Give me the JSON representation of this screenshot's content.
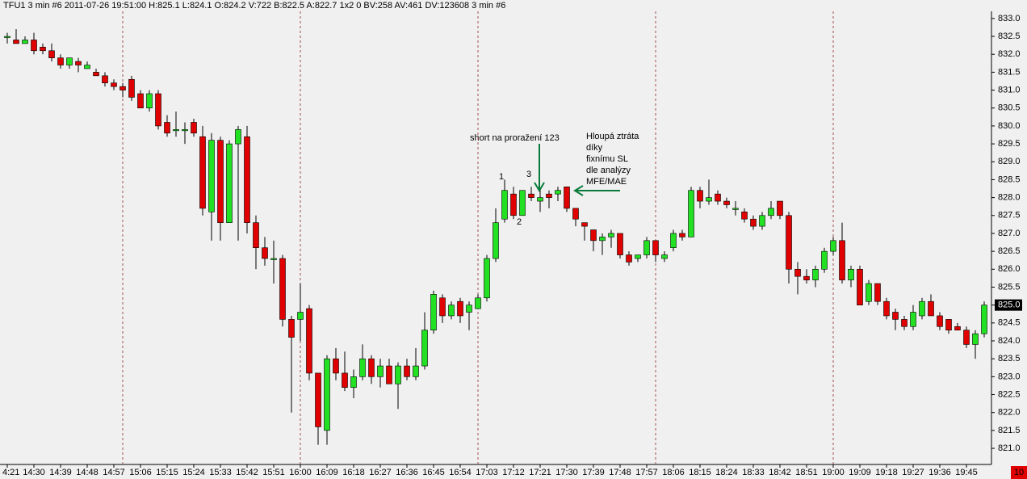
{
  "chart_data": {
    "type": "candlestick",
    "title": "TFU1  3 min  #6 2011-07-26 19:51:00 H:825.1 L:824.1 O:824.2 V:722 B:822.5 A:822.7 1x2 0 BV:258 AV:461 DV:123608 3 min  #6",
    "up_color": "#22e022",
    "down_color": "#e00000",
    "categories": [
      "4:21",
      null,
      null,
      "14:30",
      null,
      null,
      "14:39",
      null,
      null,
      "14:48",
      null,
      null,
      "14:57",
      null,
      null,
      "15:06",
      null,
      null,
      "15:15",
      null,
      null,
      "15:24",
      null,
      null,
      "15:33",
      null,
      null,
      "15:42",
      null,
      null,
      "15:51",
      null,
      null,
      "16:00",
      null,
      null,
      "16:09",
      null,
      null,
      "16:18",
      null,
      null,
      "16:27",
      null,
      null,
      "16:36",
      null,
      null,
      "16:45",
      null,
      null,
      "16:54",
      null,
      null,
      "17:03",
      null,
      null,
      "17:12",
      null,
      null,
      "17:21",
      null,
      null,
      "17:30",
      null,
      null,
      "17:39",
      null,
      null,
      "17:48",
      null,
      null,
      "17:57",
      null,
      null,
      "18:06",
      null,
      null,
      "18:15",
      null,
      null,
      "18:24",
      null,
      null,
      "18:33",
      null,
      null,
      "18:42",
      null,
      null,
      "18:51",
      null,
      null,
      "19:00",
      null,
      null,
      "19:09",
      null,
      null,
      "19:18",
      null,
      null,
      "19:27",
      null,
      null,
      "19:36",
      null,
      null,
      "19:45",
      null,
      null
    ],
    "open": [
      832.5,
      832.4,
      832.3,
      832.4,
      832.2,
      832.1,
      831.9,
      831.7,
      831.8,
      831.6,
      831.5,
      831.4,
      831.2,
      831.1,
      831.3,
      830.9,
      830.5,
      830.9,
      830.1,
      829.9,
      829.9,
      830.1,
      829.7,
      827.6,
      829.6,
      827.3,
      829.5,
      829.7,
      827.3,
      826.6,
      826.3,
      826.3,
      824.6,
      824.6,
      824.9,
      823.1,
      821.5,
      823.5,
      823.1,
      822.7,
      823.0,
      823.5,
      823.0,
      823.3,
      822.8,
      823.3,
      823.0,
      823.3,
      824.3,
      825.2,
      824.7,
      825.1,
      824.8,
      824.9,
      825.2,
      826.3,
      827.4,
      828.1,
      827.5,
      828.1,
      827.9,
      828.1,
      828.1,
      828.3,
      827.7,
      827.3,
      827.1,
      826.8,
      826.9,
      827.0,
      826.4,
      826.3,
      826.4,
      826.8,
      826.3,
      826.6,
      827.0,
      826.9,
      828.2,
      827.9,
      828.1,
      827.9,
      827.7,
      827.6,
      827.4,
      827.2,
      827.5,
      827.9,
      827.5,
      826.0,
      825.8,
      825.7,
      826.0,
      826.5,
      826.8,
      825.7,
      826.0,
      825.1,
      825.6,
      825.1,
      824.8,
      824.6,
      824.4,
      824.7,
      825.1,
      824.7,
      824.6,
      824.4,
      824.3,
      823.9,
      824.2
    ],
    "high": [
      832.6,
      832.7,
      832.5,
      832.6,
      832.3,
      832.3,
      832.0,
      831.9,
      831.9,
      831.8,
      831.6,
      831.5,
      831.3,
      831.2,
      831.4,
      831.0,
      831.0,
      831.0,
      830.3,
      830.4,
      830.1,
      830.2,
      830.0,
      829.8,
      829.7,
      829.6,
      830.0,
      830.0,
      827.5,
      826.9,
      826.8,
      826.4,
      824.7,
      825.6,
      825.0,
      823.1,
      823.6,
      823.8,
      823.7,
      823.2,
      823.9,
      823.6,
      823.5,
      823.5,
      823.4,
      823.5,
      823.8,
      824.8,
      825.4,
      825.3,
      825.1,
      825.2,
      825.1,
      825.3,
      826.4,
      827.7,
      828.5,
      828.3,
      828.2,
      828.3,
      828.2,
      828.2,
      828.3,
      828.3,
      827.7,
      827.3,
      827.1,
      827.0,
      827.1,
      827.0,
      826.5,
      826.4,
      826.9,
      826.8,
      826.5,
      827.1,
      827.1,
      828.3,
      828.3,
      828.5,
      828.2,
      828.0,
      827.9,
      827.7,
      827.5,
      827.6,
      827.9,
      827.9,
      827.6,
      826.2,
      826.0,
      826.1,
      826.6,
      826.9,
      827.3,
      826.1,
      826.1,
      825.7,
      825.6,
      825.2,
      824.9,
      824.7,
      825.0,
      825.2,
      825.3,
      824.8,
      824.6,
      824.5,
      824.4,
      824.3,
      825.1
    ],
    "low": [
      832.3,
      832.3,
      832.3,
      832.0,
      832.0,
      831.8,
      831.6,
      831.6,
      831.5,
      831.6,
      831.4,
      831.1,
      831.0,
      830.8,
      830.7,
      830.5,
      830.4,
      829.9,
      829.7,
      829.7,
      829.5,
      829.7,
      827.5,
      826.8,
      826.8,
      827.3,
      826.8,
      827.0,
      826.0,
      826.1,
      825.6,
      824.4,
      822.0,
      824.0,
      822.9,
      821.1,
      821.1,
      822.9,
      822.6,
      822.4,
      822.9,
      822.8,
      822.7,
      822.8,
      822.1,
      822.9,
      822.9,
      823.2,
      824.2,
      824.5,
      824.6,
      824.5,
      824.3,
      824.9,
      825.1,
      826.2,
      827.3,
      827.4,
      827.5,
      827.9,
      827.6,
      827.7,
      827.9,
      827.6,
      827.2,
      826.8,
      826.5,
      826.4,
      826.6,
      826.3,
      826.1,
      826.2,
      826.3,
      826.2,
      826.2,
      826.5,
      826.8,
      826.9,
      827.7,
      827.8,
      827.8,
      827.7,
      827.5,
      827.3,
      827.1,
      827.1,
      827.4,
      827.4,
      825.6,
      825.3,
      825.6,
      825.5,
      825.9,
      826.4,
      825.6,
      825.5,
      825.0,
      825.0,
      825.0,
      824.6,
      824.3,
      824.3,
      824.3,
      824.6,
      824.7,
      824.3,
      824.2,
      824.3,
      823.8,
      823.5,
      824.1
    ],
    "close": [
      832.5,
      832.3,
      832.4,
      832.1,
      832.1,
      831.9,
      831.7,
      831.9,
      831.7,
      831.7,
      831.4,
      831.2,
      831.1,
      831.0,
      830.8,
      830.5,
      830.9,
      830.0,
      829.8,
      829.9,
      829.9,
      829.8,
      827.7,
      829.6,
      827.3,
      829.5,
      829.9,
      827.3,
      826.6,
      826.3,
      826.3,
      824.6,
      824.1,
      824.8,
      823.1,
      821.6,
      823.5,
      823.1,
      822.7,
      823.0,
      823.5,
      823.0,
      823.3,
      822.8,
      823.3,
      823.0,
      823.3,
      824.3,
      825.3,
      824.7,
      825.0,
      824.7,
      825.0,
      825.2,
      826.3,
      827.3,
      828.2,
      827.5,
      828.2,
      828.0,
      828.0,
      828.0,
      828.2,
      827.7,
      827.4,
      827.2,
      826.8,
      826.9,
      827.0,
      826.4,
      826.2,
      826.4,
      826.8,
      826.4,
      826.4,
      827.0,
      826.9,
      828.2,
      827.9,
      828.0,
      827.9,
      827.8,
      827.7,
      827.4,
      827.2,
      827.5,
      827.7,
      827.5,
      826.0,
      825.8,
      825.7,
      826.0,
      826.5,
      826.8,
      825.7,
      826.0,
      825.0,
      825.6,
      825.1,
      824.7,
      824.6,
      824.4,
      824.8,
      825.1,
      824.7,
      824.4,
      824.3,
      824.3,
      823.9,
      824.2,
      825.0
    ],
    "ylim": [
      820.55,
      833.2
    ],
    "yticks": [
      {
        "value": 833,
        "label": "833.0"
      },
      {
        "value": 832.5,
        "label": "832.5"
      },
      {
        "value": 832,
        "label": "832.0"
      },
      {
        "value": 831.5,
        "label": "831.5"
      },
      {
        "value": 831,
        "label": "831.0"
      },
      {
        "value": 830.5,
        "label": "830.5"
      },
      {
        "value": 830,
        "label": "830.0"
      },
      {
        "value": 829.5,
        "label": "829.5"
      },
      {
        "value": 829,
        "label": "829.0"
      },
      {
        "value": 828.5,
        "label": "828.5"
      },
      {
        "value": 828,
        "label": "828.0"
      },
      {
        "value": 827.5,
        "label": "827.5"
      },
      {
        "value": 827,
        "label": "827.0"
      },
      {
        "value": 826.5,
        "label": "826.5"
      },
      {
        "value": 826,
        "label": "826.0"
      },
      {
        "value": 825.5,
        "label": "825.5"
      },
      {
        "value": 825,
        "label": "825.0"
      },
      {
        "value": 824.5,
        "label": "824.5"
      },
      {
        "value": 824,
        "label": "824.0"
      },
      {
        "value": 823.5,
        "label": "823.5"
      },
      {
        "value": 823,
        "label": "823.0"
      },
      {
        "value": 822.5,
        "label": "822.5"
      },
      {
        "value": 822,
        "label": "822.0"
      },
      {
        "value": 821.5,
        "label": "821.5"
      },
      {
        "value": 821,
        "label": "821.0"
      }
    ],
    "last_price": {
      "value": 825.0,
      "label": "825.0"
    },
    "corner_badge": "10",
    "annotations": {
      "short_note": "short na proražení 123",
      "loss_note": [
        "Hloupá ztráta",
        "díky",
        "fixnímu SL",
        "dle analýzy",
        "MFE/MAE"
      ],
      "swing_labels": [
        "1",
        "2",
        "3"
      ]
    }
  }
}
